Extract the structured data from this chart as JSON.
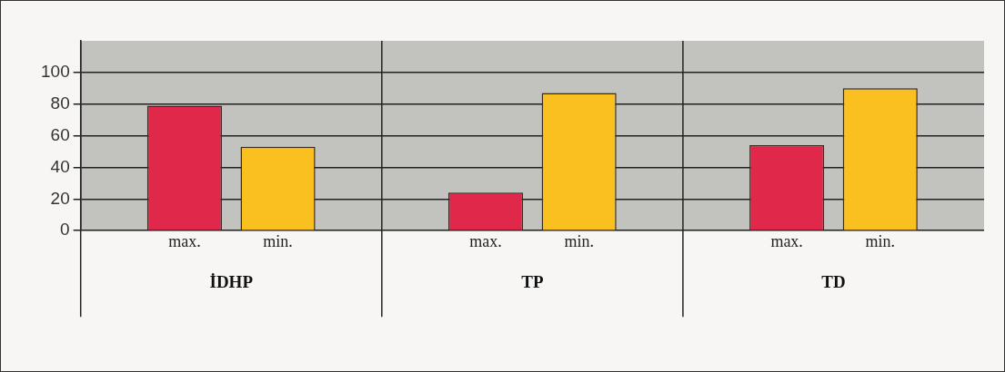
{
  "chart_data": {
    "type": "bar",
    "categories": [
      "İDHP",
      "TP",
      "TD"
    ],
    "series": [
      {
        "name": "max.",
        "color": "#e0294a",
        "values": [
          79,
          24,
          54
        ]
      },
      {
        "name": "min.",
        "color": "#f9c020",
        "values": [
          53,
          87,
          90
        ]
      }
    ],
    "ylim": [
      0,
      120
    ],
    "yticks": [
      0,
      20,
      40,
      60,
      80,
      100
    ],
    "grid": "y",
    "legend": false
  }
}
